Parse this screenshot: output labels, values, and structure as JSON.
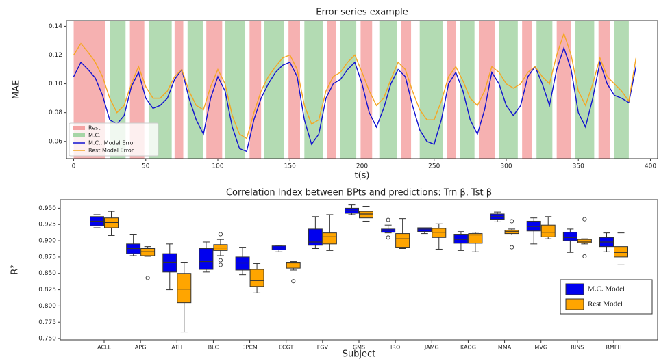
{
  "chart_data": [
    {
      "type": "line",
      "title": "Error series example",
      "xlabel": "t(s)",
      "ylabel": "MAE",
      "xlim": [
        -5,
        405
      ],
      "ylim": [
        0.048,
        0.144
      ],
      "xticks": [
        0,
        50,
        100,
        150,
        200,
        250,
        300,
        350,
        400
      ],
      "yticks": [
        0.06,
        0.08,
        {
          "value": 0.1,
          "label": "0.10"
        },
        0.12,
        0.14
      ],
      "legend": "lower left",
      "bands": [
        {
          "name": "Rest",
          "color": "#f4a3a3",
          "ranges": [
            [
              0,
              22
            ],
            [
              39,
              49
            ],
            [
              70,
              76
            ],
            [
              92,
              103
            ],
            [
              122,
              130
            ],
            [
              149,
              157
            ],
            [
              176,
              182
            ],
            [
              199,
              207
            ],
            [
              227,
              234
            ],
            [
              259,
              265
            ],
            [
              281,
              292
            ],
            [
              311,
              318
            ],
            [
              335,
              345
            ],
            [
              364,
              372
            ]
          ]
        },
        {
          "name": "M.C.",
          "color": "#a6d5a6",
          "ranges": [
            [
              25,
              36
            ],
            [
              52,
              68
            ],
            [
              79,
              90
            ],
            [
              105,
              119
            ],
            [
              132,
              146
            ],
            [
              160,
              173
            ],
            [
              185,
              196
            ],
            [
              212,
              224
            ],
            [
              240,
              256
            ],
            [
              268,
              278
            ],
            [
              295,
              308
            ],
            [
              321,
              332
            ],
            [
              348,
              361
            ],
            [
              375,
              385
            ]
          ]
        }
      ],
      "x": [
        0,
        5,
        10,
        15,
        20,
        25,
        30,
        35,
        40,
        45,
        50,
        55,
        60,
        65,
        70,
        75,
        80,
        85,
        90,
        95,
        100,
        105,
        110,
        115,
        120,
        125,
        130,
        135,
        140,
        145,
        150,
        155,
        160,
        165,
        170,
        175,
        180,
        185,
        190,
        195,
        200,
        205,
        210,
        215,
        220,
        225,
        230,
        235,
        240,
        245,
        250,
        255,
        260,
        265,
        270,
        275,
        280,
        285,
        290,
        295,
        300,
        305,
        310,
        315,
        320,
        325,
        330,
        335,
        340,
        345,
        350,
        355,
        360,
        365,
        370,
        375,
        380,
        385,
        390
      ],
      "series": [
        {
          "name": "M.C.. Model Error",
          "color": "#1010d0",
          "values": [
            0.105,
            0.115,
            0.11,
            0.104,
            0.092,
            0.075,
            0.072,
            0.078,
            0.098,
            0.108,
            0.09,
            0.083,
            0.085,
            0.09,
            0.103,
            0.11,
            0.09,
            0.075,
            0.065,
            0.09,
            0.105,
            0.095,
            0.07,
            0.055,
            0.053,
            0.075,
            0.09,
            0.1,
            0.108,
            0.113,
            0.115,
            0.105,
            0.075,
            0.058,
            0.065,
            0.09,
            0.1,
            0.103,
            0.11,
            0.115,
            0.1,
            0.08,
            0.07,
            0.083,
            0.1,
            0.11,
            0.105,
            0.085,
            0.068,
            0.06,
            0.058,
            0.075,
            0.1,
            0.108,
            0.095,
            0.075,
            0.065,
            0.082,
            0.108,
            0.1,
            0.085,
            0.078,
            0.085,
            0.105,
            0.112,
            0.1,
            0.085,
            0.11,
            0.125,
            0.11,
            0.08,
            0.07,
            0.09,
            0.115,
            0.1,
            0.092,
            0.09,
            0.087,
            0.112
          ]
        },
        {
          "name": "Rest Model Error",
          "color": "#f5a623",
          "values": [
            0.12,
            0.128,
            0.122,
            0.115,
            0.105,
            0.09,
            0.08,
            0.085,
            0.1,
            0.112,
            0.098,
            0.09,
            0.09,
            0.095,
            0.105,
            0.11,
            0.095,
            0.085,
            0.082,
            0.098,
            0.11,
            0.1,
            0.078,
            0.065,
            0.062,
            0.08,
            0.095,
            0.105,
            0.112,
            0.118,
            0.12,
            0.11,
            0.085,
            0.072,
            0.075,
            0.095,
            0.105,
            0.108,
            0.115,
            0.12,
            0.108,
            0.095,
            0.085,
            0.09,
            0.103,
            0.115,
            0.11,
            0.095,
            0.082,
            0.075,
            0.075,
            0.088,
            0.105,
            0.112,
            0.102,
            0.09,
            0.085,
            0.095,
            0.112,
            0.108,
            0.1,
            0.097,
            0.1,
            0.108,
            0.112,
            0.105,
            0.1,
            0.12,
            0.135,
            0.12,
            0.095,
            0.085,
            0.1,
            0.118,
            0.105,
            0.1,
            0.095,
            0.088,
            0.118
          ]
        }
      ]
    },
    {
      "type": "box",
      "title": "Correlation Index between BPts and predictions: Trn β,  Tst β",
      "xlabel": "Subject",
      "ylabel": "R²",
      "ylim": [
        0.748,
        0.963
      ],
      "yticks": [
        {
          "value": 0.75,
          "label": "0.750"
        },
        0.775,
        {
          "value": 0.8,
          "label": "0.800"
        },
        0.825,
        {
          "value": 0.85,
          "label": "0.850"
        },
        0.875,
        {
          "value": 0.9,
          "label": "0.900"
        },
        0.925,
        {
          "value": 0.95,
          "label": "0.950"
        }
      ],
      "legend": "lower right",
      "categories": [
        "ACLL",
        "APG",
        "ATH",
        "BLC",
        "EPCM",
        "ECGT",
        "FGV",
        "GMS",
        "IRO",
        "JAMG",
        "KAOG",
        "MMA",
        "MVG",
        "RINS",
        "RMFH"
      ],
      "series": [
        {
          "name": "M.C. Model",
          "color": "#0000ee",
          "boxes": [
            {
              "low": 0.92,
              "q1": 0.923,
              "median": 0.93,
              "q3": 0.937,
              "high": 0.94,
              "outliers": []
            },
            {
              "low": 0.877,
              "q1": 0.88,
              "median": 0.888,
              "q3": 0.895,
              "high": 0.91,
              "outliers": []
            },
            {
              "low": 0.825,
              "q1": 0.852,
              "median": 0.867,
              "q3": 0.88,
              "high": 0.895,
              "outliers": []
            },
            {
              "low": 0.852,
              "q1": 0.856,
              "median": 0.868,
              "q3": 0.888,
              "high": 0.898,
              "outliers": []
            },
            {
              "low": 0.848,
              "q1": 0.855,
              "median": 0.866,
              "q3": 0.875,
              "high": 0.89,
              "outliers": []
            },
            {
              "low": 0.883,
              "q1": 0.886,
              "median": 0.889,
              "q3": 0.892,
              "high": 0.893,
              "outliers": []
            },
            {
              "low": 0.888,
              "q1": 0.893,
              "median": 0.898,
              "q3": 0.918,
              "high": 0.937,
              "outliers": []
            },
            {
              "low": 0.94,
              "q1": 0.942,
              "median": 0.946,
              "q3": 0.95,
              "high": 0.955,
              "outliers": []
            },
            {
              "low": 0.912,
              "q1": 0.913,
              "median": 0.916,
              "q3": 0.918,
              "high": 0.924,
              "outliers": [
                0.932,
                0.905
              ]
            },
            {
              "low": 0.911,
              "q1": 0.914,
              "median": 0.918,
              "q3": 0.92,
              "high": 0.92,
              "outliers": []
            },
            {
              "low": 0.885,
              "q1": 0.896,
              "median": 0.902,
              "q3": 0.91,
              "high": 0.914,
              "outliers": []
            },
            {
              "low": 0.929,
              "q1": 0.933,
              "median": 0.937,
              "q3": 0.941,
              "high": 0.944,
              "outliers": []
            },
            {
              "low": 0.895,
              "q1": 0.915,
              "median": 0.922,
              "q3": 0.93,
              "high": 0.935,
              "outliers": []
            },
            {
              "low": 0.882,
              "q1": 0.9,
              "median": 0.905,
              "q3": 0.913,
              "high": 0.918,
              "outliers": []
            },
            {
              "low": 0.883,
              "q1": 0.891,
              "median": 0.898,
              "q3": 0.905,
              "high": 0.912,
              "outliers": []
            }
          ]
        },
        {
          "name": "Rest Model",
          "color": "#ffa500",
          "boxes": [
            {
              "low": 0.908,
              "q1": 0.92,
              "median": 0.928,
              "q3": 0.935,
              "high": 0.945,
              "outliers": []
            },
            {
              "low": 0.876,
              "q1": 0.877,
              "median": 0.883,
              "q3": 0.888,
              "high": 0.891,
              "outliers": [
                0.843
              ]
            },
            {
              "low": 0.76,
              "q1": 0.805,
              "median": 0.826,
              "q3": 0.85,
              "high": 0.867,
              "outliers": []
            },
            {
              "low": 0.877,
              "q1": 0.885,
              "median": 0.889,
              "q3": 0.894,
              "high": 0.902,
              "outliers": [
                0.91,
                0.87,
                0.863
              ]
            },
            {
              "low": 0.82,
              "q1": 0.83,
              "median": 0.839,
              "q3": 0.856,
              "high": 0.865,
              "outliers": []
            },
            {
              "low": 0.855,
              "q1": 0.858,
              "median": 0.866,
              "q3": 0.867,
              "high": 0.868,
              "outliers": [
                0.838
              ]
            },
            {
              "low": 0.885,
              "q1": 0.895,
              "median": 0.906,
              "q3": 0.912,
              "high": 0.94,
              "outliers": []
            },
            {
              "low": 0.93,
              "q1": 0.935,
              "median": 0.941,
              "q3": 0.945,
              "high": 0.953,
              "outliers": []
            },
            {
              "low": 0.888,
              "q1": 0.89,
              "median": 0.903,
              "q3": 0.911,
              "high": 0.934,
              "outliers": []
            },
            {
              "low": 0.887,
              "q1": 0.905,
              "median": 0.913,
              "q3": 0.919,
              "high": 0.926,
              "outliers": []
            },
            {
              "low": 0.883,
              "q1": 0.896,
              "median": 0.909,
              "q3": 0.911,
              "high": 0.913,
              "outliers": []
            },
            {
              "low": 0.909,
              "q1": 0.911,
              "median": 0.914,
              "q3": 0.916,
              "high": 0.918,
              "outliers": [
                0.93,
                0.89
              ]
            },
            {
              "low": 0.903,
              "q1": 0.906,
              "median": 0.913,
              "q3": 0.924,
              "high": 0.937,
              "outliers": []
            },
            {
              "low": 0.895,
              "q1": 0.897,
              "median": 0.899,
              "q3": 0.902,
              "high": 0.903,
              "outliers": [
                0.933,
                0.876
              ]
            },
            {
              "low": 0.863,
              "q1": 0.875,
              "median": 0.882,
              "q3": 0.891,
              "high": 0.912,
              "outliers": []
            }
          ]
        }
      ]
    }
  ]
}
